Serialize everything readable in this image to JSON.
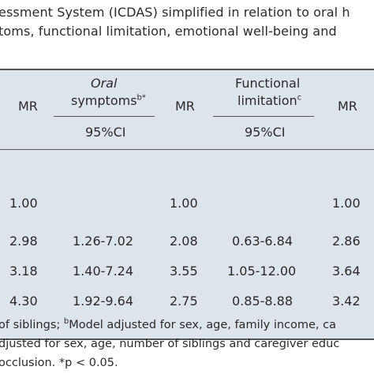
{
  "caption": {
    "line1": "essment System (ICDAS) simplified in relation to oral h",
    "line2": "toms, functional limitation, emotional well-being and"
  },
  "header": {
    "mr_label": "MR",
    "oral": {
      "line1": "Oral",
      "line2": "symptoms",
      "sup": "b*"
    },
    "functional": {
      "line1": "Functional",
      "line2": "limitation",
      "sup": "c"
    },
    "ci_label": "95%CI"
  },
  "rows": [
    {
      "mr1": "1.00",
      "ci1": "",
      "mr2": "1.00",
      "ci2": "",
      "mr3": "1.00"
    },
    {
      "mr1": "2.98",
      "ci1": "1.26-7.02",
      "mr2": "2.08",
      "ci2": "0.63-6.84",
      "mr3": "2.86"
    },
    {
      "mr1": "3.18",
      "ci1": "1.40-7.24",
      "mr2": "3.55",
      "ci2": "1.05-12.00",
      "mr3": "3.64"
    },
    {
      "mr1": "4.30",
      "ci1": "1.92-9.64",
      "mr2": "2.75",
      "ci2": "0.85-8.88",
      "mr3": "3.42"
    }
  ],
  "footnotes": {
    "line1_a": "of siblings; ",
    "line1_sup": "b",
    "line1_b": "Model adjusted for sex, age, family income, ca",
    "line2": "djusted for sex, age, number of siblings and caregiver educ",
    "line3": "occlusion. *p < 0.05."
  }
}
